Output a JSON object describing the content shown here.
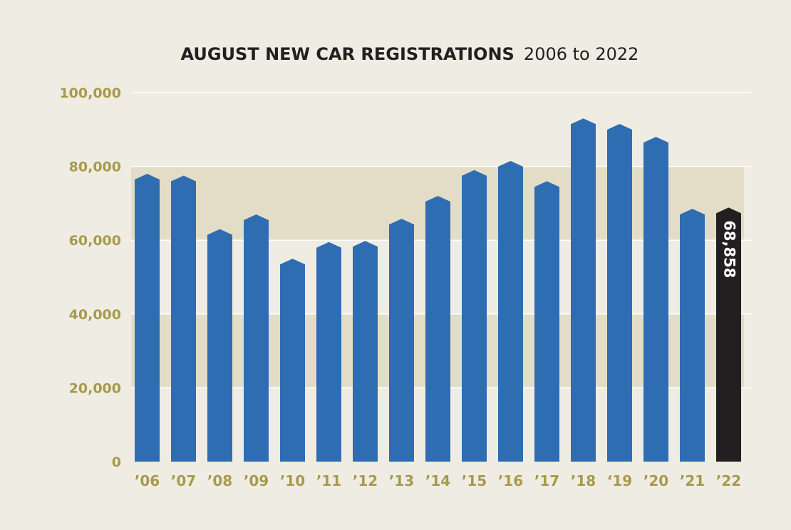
{
  "chart_data": {
    "type": "bar",
    "title": "AUGUST NEW CAR REGISTRATIONS",
    "subtitle": "2006 to 2022",
    "xlabel": "",
    "ylabel": "",
    "ylim": [
      0,
      100000
    ],
    "yticks": [
      0,
      20000,
      40000,
      60000,
      80000,
      100000
    ],
    "ytick_labels": [
      "0",
      "20,000",
      "40,000",
      "60,000",
      "80,000",
      "100,000"
    ],
    "categories": [
      "’06",
      "’07",
      "’08",
      "’09",
      "’10",
      "’11",
      "’12",
      "’13",
      "’14",
      "’15",
      "’16",
      "’17",
      "’18",
      "‘19",
      "’20",
      "’21",
      "’22"
    ],
    "values": [
      78000,
      77500,
      63000,
      67000,
      55000,
      59500,
      59800,
      65800,
      72000,
      79000,
      81500,
      76000,
      93000,
      91500,
      88000,
      68500,
      68858
    ],
    "highlight_index": 16,
    "data_labels": [
      {
        "index": 16,
        "text": "68,858"
      }
    ],
    "colors": {
      "bar": "#2f6db3",
      "highlight_bar": "#231f20",
      "background": "#efede3",
      "band": "#e3ddc7",
      "tick_text": "#a79a4c",
      "title_text": "#231f20",
      "grid": "#ffffff"
    }
  }
}
